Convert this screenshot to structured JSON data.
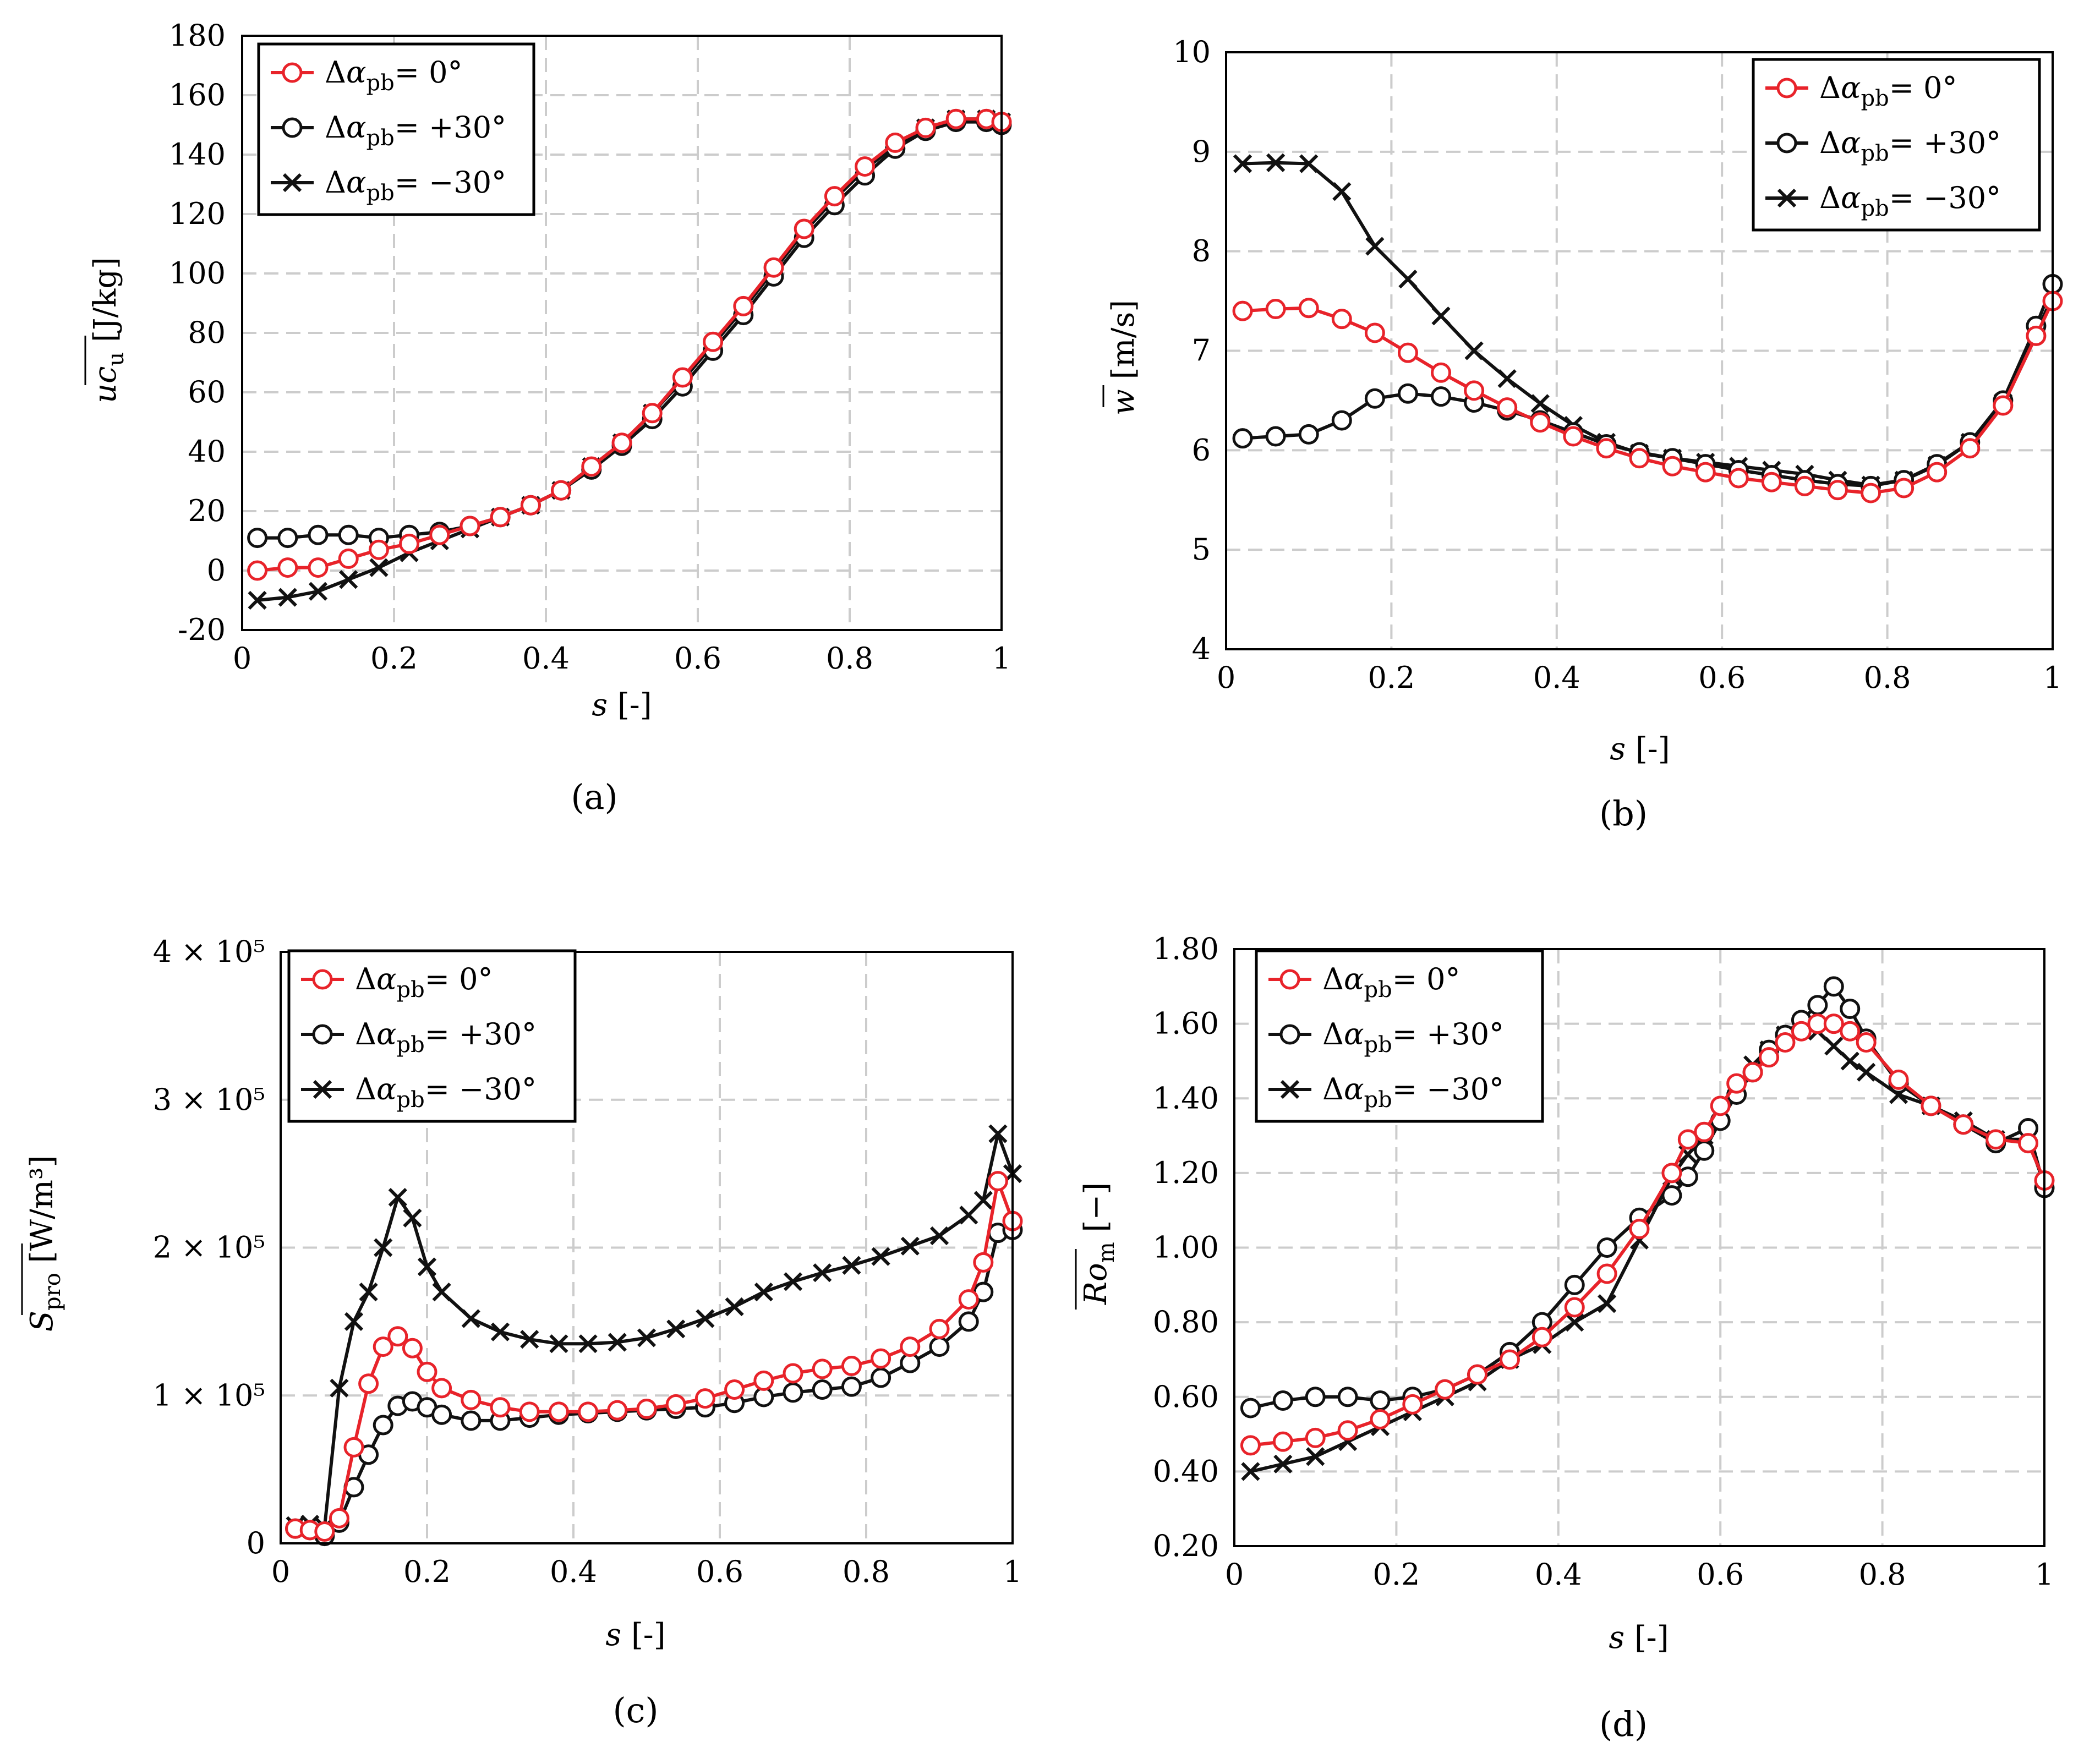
{
  "colors": {
    "red": "#e8232a",
    "black": "#111111",
    "grid": "#cccccc"
  },
  "legend_labels": [
    "Δα_pb = 0°",
    "Δα_pb = +30°",
    "Δα_pb = −30°"
  ],
  "chart_data": [
    {
      "id": "a",
      "type": "line",
      "caption": "(a)",
      "xlabel": "s [-]",
      "ylabel": "uc_u [J/kg]",
      "xlim": [
        0,
        1
      ],
      "ylim": [
        -20,
        180
      ],
      "xticks": [
        "0",
        "0.2",
        "0.4",
        "0.6",
        "0.8",
        "1"
      ],
      "yticks": [
        "-20",
        "0",
        "20",
        "40",
        "60",
        "80",
        "100",
        "120",
        "140",
        "160",
        "180"
      ],
      "legend_position": "top-left",
      "series": [
        {
          "name": "Δα_pb = 0°",
          "color": "red",
          "marker": "circle",
          "x": [
            0.02,
            0.06,
            0.1,
            0.14,
            0.18,
            0.22,
            0.26,
            0.3,
            0.34,
            0.38,
            0.42,
            0.46,
            0.5,
            0.54,
            0.58,
            0.62,
            0.66,
            0.7,
            0.74,
            0.78,
            0.82,
            0.86,
            0.9,
            0.94,
            0.98,
            1.0
          ],
          "y": [
            0,
            1,
            1,
            4,
            7,
            9,
            12,
            15,
            18,
            22,
            27,
            35,
            43,
            53,
            65,
            77,
            89,
            102,
            115,
            126,
            136,
            144,
            149,
            152,
            152,
            151
          ]
        },
        {
          "name": "Δα_pb = +30°",
          "color": "black",
          "marker": "circle",
          "x": [
            0.02,
            0.06,
            0.1,
            0.14,
            0.18,
            0.22,
            0.26,
            0.3,
            0.34,
            0.38,
            0.42,
            0.46,
            0.5,
            0.54,
            0.58,
            0.62,
            0.66,
            0.7,
            0.74,
            0.78,
            0.82,
            0.86,
            0.9,
            0.94,
            0.98,
            1.0
          ],
          "y": [
            11,
            11,
            12,
            12,
            11,
            12,
            13,
            15,
            18,
            22,
            27,
            34,
            42,
            51,
            62,
            74,
            86,
            99,
            112,
            123,
            133,
            142,
            148,
            151,
            151,
            150
          ]
        },
        {
          "name": "Δα_pb = −30°",
          "color": "black",
          "marker": "cross",
          "x": [
            0.02,
            0.06,
            0.1,
            0.14,
            0.18,
            0.22,
            0.26,
            0.3,
            0.34,
            0.38,
            0.42,
            0.46,
            0.5,
            0.54,
            0.58,
            0.62,
            0.66,
            0.7,
            0.74,
            0.78,
            0.82,
            0.86,
            0.9,
            0.94,
            0.98,
            1.0
          ],
          "y": [
            -10,
            -9,
            -7,
            -3,
            1,
            6,
            10,
            14,
            18,
            22,
            27,
            35,
            43,
            53,
            64,
            76,
            88,
            101,
            114,
            125,
            135,
            143,
            149,
            152,
            152,
            151
          ]
        }
      ]
    },
    {
      "id": "b",
      "type": "line",
      "caption": "(b)",
      "xlabel": "s [-]",
      "ylabel": "w [m/s]",
      "xlim": [
        0,
        1
      ],
      "ylim": [
        4,
        10
      ],
      "xticks": [
        "0",
        "0.2",
        "0.4",
        "0.6",
        "0.8",
        "1"
      ],
      "yticks": [
        "4",
        "5",
        "6",
        "7",
        "8",
        "9",
        "10"
      ],
      "legend_position": "top-right",
      "series": [
        {
          "name": "Δα_pb = 0°",
          "color": "red",
          "marker": "circle",
          "x": [
            0.02,
            0.06,
            0.1,
            0.14,
            0.18,
            0.22,
            0.26,
            0.3,
            0.34,
            0.38,
            0.42,
            0.46,
            0.5,
            0.54,
            0.58,
            0.62,
            0.66,
            0.7,
            0.74,
            0.78,
            0.82,
            0.86,
            0.9,
            0.94,
            0.98,
            1.0
          ],
          "y": [
            7.4,
            7.42,
            7.43,
            7.32,
            7.18,
            6.98,
            6.78,
            6.6,
            6.43,
            6.28,
            6.14,
            6.02,
            5.92,
            5.84,
            5.78,
            5.72,
            5.68,
            5.64,
            5.6,
            5.57,
            5.62,
            5.78,
            6.02,
            6.45,
            7.15,
            7.5
          ]
        },
        {
          "name": "Δα_pb = +30°",
          "color": "black",
          "marker": "circle",
          "x": [
            0.02,
            0.06,
            0.1,
            0.14,
            0.18,
            0.22,
            0.26,
            0.3,
            0.34,
            0.38,
            0.42,
            0.46,
            0.5,
            0.54,
            0.58,
            0.62,
            0.66,
            0.7,
            0.74,
            0.78,
            0.82,
            0.86,
            0.9,
            0.94,
            0.98,
            1.0
          ],
          "y": [
            6.12,
            6.14,
            6.16,
            6.3,
            6.52,
            6.57,
            6.54,
            6.48,
            6.4,
            6.3,
            6.18,
            6.06,
            5.98,
            5.92,
            5.86,
            5.8,
            5.75,
            5.7,
            5.66,
            5.64,
            5.7,
            5.86,
            6.08,
            6.5,
            7.25,
            7.67
          ]
        },
        {
          "name": "Δα_pb = −30°",
          "color": "black",
          "marker": "cross",
          "x": [
            0.02,
            0.06,
            0.1,
            0.14,
            0.18,
            0.22,
            0.26,
            0.3,
            0.34,
            0.38,
            0.42,
            0.46,
            0.5,
            0.54,
            0.58,
            0.62,
            0.66,
            0.7,
            0.74,
            0.78,
            0.82,
            0.86,
            0.9,
            0.94,
            0.98,
            1.0
          ],
          "y": [
            8.88,
            8.89,
            8.88,
            8.6,
            8.05,
            7.72,
            7.35,
            7.0,
            6.72,
            6.47,
            6.25,
            6.08,
            5.97,
            5.92,
            5.88,
            5.84,
            5.8,
            5.76,
            5.7,
            5.65,
            5.7,
            5.85,
            6.08,
            6.48,
            7.18,
            7.55
          ]
        }
      ]
    },
    {
      "id": "c",
      "type": "line",
      "caption": "(c)",
      "xlabel": "s [-]",
      "ylabel": "S_pro [W/m³]",
      "xlim": [
        0,
        1
      ],
      "ylim": [
        0,
        400000
      ],
      "xticks": [
        "0",
        "0.2",
        "0.4",
        "0.6",
        "0.8",
        "1"
      ],
      "yticks": [
        "0",
        "1 × 10⁵",
        "2 × 10⁵",
        "3 × 10⁵",
        "4 × 10⁵"
      ],
      "legend_position": "top-left",
      "series": [
        {
          "name": "Δα_pb = 0°",
          "color": "red",
          "marker": "circle",
          "x": [
            0.02,
            0.04,
            0.06,
            0.08,
            0.1,
            0.12,
            0.14,
            0.16,
            0.18,
            0.2,
            0.22,
            0.26,
            0.3,
            0.34,
            0.38,
            0.42,
            0.46,
            0.5,
            0.54,
            0.58,
            0.62,
            0.66,
            0.7,
            0.74,
            0.78,
            0.82,
            0.86,
            0.9,
            0.94,
            0.96,
            0.98,
            1.0
          ],
          "y": [
            10000,
            9000,
            8000,
            17000,
            65000,
            108000,
            133000,
            140000,
            132000,
            116000,
            105000,
            97000,
            92000,
            89000,
            89000,
            89000,
            90000,
            91000,
            94000,
            98000,
            104000,
            110000,
            115000,
            118000,
            120000,
            125000,
            133000,
            145000,
            165000,
            190000,
            245000,
            218000
          ]
        },
        {
          "name": "Δα_pb = +30°",
          "color": "black",
          "marker": "circle",
          "x": [
            0.02,
            0.04,
            0.06,
            0.08,
            0.1,
            0.12,
            0.14,
            0.16,
            0.18,
            0.2,
            0.22,
            0.26,
            0.3,
            0.34,
            0.38,
            0.42,
            0.46,
            0.5,
            0.54,
            0.58,
            0.62,
            0.66,
            0.7,
            0.74,
            0.78,
            0.82,
            0.86,
            0.9,
            0.94,
            0.96,
            0.98,
            1.0
          ],
          "y": [
            10000,
            9000,
            5000,
            14000,
            38000,
            60000,
            80000,
            93000,
            96000,
            92000,
            87000,
            83000,
            83000,
            85000,
            87000,
            88000,
            89000,
            90000,
            91000,
            92000,
            95000,
            99000,
            102000,
            104000,
            106000,
            112000,
            122000,
            133000,
            150000,
            170000,
            210000,
            212000
          ]
        },
        {
          "name": "Δα_pb = −30°",
          "color": "black",
          "marker": "cross",
          "x": [
            0.02,
            0.04,
            0.06,
            0.08,
            0.1,
            0.12,
            0.14,
            0.16,
            0.18,
            0.2,
            0.22,
            0.26,
            0.3,
            0.34,
            0.38,
            0.42,
            0.46,
            0.5,
            0.54,
            0.58,
            0.62,
            0.66,
            0.7,
            0.74,
            0.78,
            0.82,
            0.86,
            0.9,
            0.94,
            0.96,
            0.98,
            1.0
          ],
          "y": [
            12000,
            13000,
            11000,
            105000,
            150000,
            170000,
            200000,
            234000,
            220000,
            187000,
            170000,
            152000,
            143000,
            138000,
            135000,
            135000,
            136000,
            139000,
            145000,
            152000,
            160000,
            170000,
            177000,
            183000,
            188000,
            194000,
            201000,
            208000,
            222000,
            232000,
            277000,
            250000
          ]
        }
      ]
    },
    {
      "id": "d",
      "type": "line",
      "caption": "(d)",
      "xlabel": "s [-]",
      "ylabel": "Ro_m [−]",
      "xlim": [
        0,
        1
      ],
      "ylim": [
        0.2,
        1.8
      ],
      "xticks": [
        "0",
        "0.2",
        "0.4",
        "0.6",
        "0.8",
        "1"
      ],
      "yticks": [
        "0.20",
        "0.40",
        "0.60",
        "0.80",
        "1.00",
        "1.20",
        "1.40",
        "1.60",
        "1.80"
      ],
      "legend_position": "top-left",
      "series": [
        {
          "name": "Δα_pb = 0°",
          "color": "red",
          "marker": "circle",
          "x": [
            0.02,
            0.06,
            0.1,
            0.14,
            0.18,
            0.22,
            0.26,
            0.3,
            0.34,
            0.38,
            0.42,
            0.46,
            0.5,
            0.54,
            0.56,
            0.58,
            0.6,
            0.62,
            0.64,
            0.66,
            0.68,
            0.7,
            0.72,
            0.74,
            0.76,
            0.78,
            0.82,
            0.86,
            0.9,
            0.94,
            0.98,
            1.0
          ],
          "y": [
            0.47,
            0.48,
            0.49,
            0.51,
            0.54,
            0.58,
            0.62,
            0.66,
            0.7,
            0.76,
            0.84,
            0.93,
            1.05,
            1.2,
            1.29,
            1.31,
            1.38,
            1.44,
            1.47,
            1.51,
            1.55,
            1.58,
            1.6,
            1.6,
            1.58,
            1.55,
            1.45,
            1.38,
            1.33,
            1.29,
            1.28,
            1.18
          ]
        },
        {
          "name": "Δα_pb = +30°",
          "color": "black",
          "marker": "circle",
          "x": [
            0.02,
            0.06,
            0.1,
            0.14,
            0.18,
            0.22,
            0.26,
            0.3,
            0.34,
            0.38,
            0.42,
            0.46,
            0.5,
            0.54,
            0.56,
            0.58,
            0.6,
            0.62,
            0.64,
            0.66,
            0.68,
            0.7,
            0.72,
            0.74,
            0.76,
            0.78,
            0.82,
            0.86,
            0.9,
            0.94,
            0.98,
            1.0
          ],
          "y": [
            0.57,
            0.59,
            0.6,
            0.6,
            0.59,
            0.6,
            0.62,
            0.66,
            0.72,
            0.8,
            0.9,
            1.0,
            1.08,
            1.14,
            1.19,
            1.26,
            1.34,
            1.41,
            1.47,
            1.53,
            1.57,
            1.61,
            1.65,
            1.7,
            1.64,
            1.56,
            1.44,
            1.38,
            1.33,
            1.28,
            1.32,
            1.16
          ]
        },
        {
          "name": "Δα_pb = −30°",
          "color": "black",
          "marker": "cross",
          "x": [
            0.02,
            0.06,
            0.1,
            0.14,
            0.18,
            0.22,
            0.26,
            0.3,
            0.34,
            0.38,
            0.42,
            0.46,
            0.5,
            0.54,
            0.56,
            0.58,
            0.6,
            0.62,
            0.64,
            0.66,
            0.68,
            0.7,
            0.72,
            0.74,
            0.76,
            0.78,
            0.82,
            0.86,
            0.9,
            0.94,
            0.98,
            1.0
          ],
          "y": [
            0.4,
            0.42,
            0.44,
            0.48,
            0.52,
            0.56,
            0.6,
            0.64,
            0.7,
            0.74,
            0.8,
            0.85,
            1.02,
            1.19,
            1.25,
            1.3,
            1.37,
            1.43,
            1.49,
            1.53,
            1.57,
            1.59,
            1.58,
            1.54,
            1.5,
            1.47,
            1.41,
            1.38,
            1.34,
            1.29,
            1.29,
            1.17
          ]
        }
      ]
    }
  ]
}
